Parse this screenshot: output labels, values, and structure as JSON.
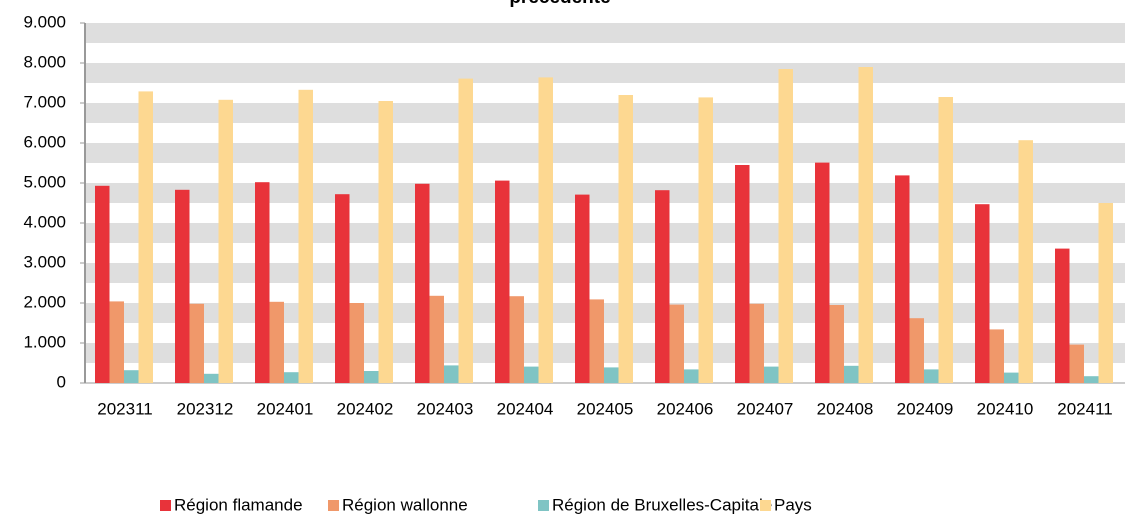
{
  "chart_data": {
    "type": "bar",
    "title": "précédente",
    "categories": [
      "202311",
      "202312",
      "202401",
      "202402",
      "202403",
      "202404",
      "202405",
      "202406",
      "202407",
      "202408",
      "202409",
      "202410",
      "202411"
    ],
    "series": [
      {
        "name": "Région flamande",
        "color": "#e8333a",
        "values": [
          4930,
          4830,
          5020,
          4720,
          4980,
          5060,
          4710,
          4820,
          5450,
          5510,
          5190,
          4470,
          3360
        ]
      },
      {
        "name": "Région wallonne",
        "color": "#f0986a",
        "values": [
          2040,
          1980,
          2030,
          2000,
          2180,
          2170,
          2090,
          1960,
          1980,
          1950,
          1620,
          1340,
          960
        ]
      },
      {
        "name": "Région de Bruxelles-Capitale",
        "color": "#7fc4c4",
        "values": [
          320,
          230,
          270,
          300,
          440,
          410,
          390,
          340,
          410,
          430,
          340,
          260,
          170
        ]
      },
      {
        "name": "Pays",
        "color": "#fdd891",
        "values": [
          7290,
          7080,
          7330,
          7050,
          7610,
          7640,
          7200,
          7140,
          7850,
          7900,
          7150,
          6070,
          4500
        ]
      }
    ],
    "ylim": [
      0,
      9000
    ],
    "yticks": [
      0,
      {
        "value": 1000,
        "label": "1.000"
      },
      {
        "value": 2000,
        "label": "2.000"
      },
      {
        "value": 3000,
        "label": "3.000"
      },
      {
        "value": 4000,
        "label": "4.000"
      },
      {
        "value": 5000,
        "label": "5.000"
      },
      {
        "value": 6000,
        "label": "6.000"
      },
      {
        "value": 7000,
        "label": "7.000"
      },
      {
        "value": 8000,
        "label": "8.000"
      },
      {
        "value": 9000,
        "label": "9.000"
      }
    ],
    "grid": true,
    "legend": "bottom"
  }
}
